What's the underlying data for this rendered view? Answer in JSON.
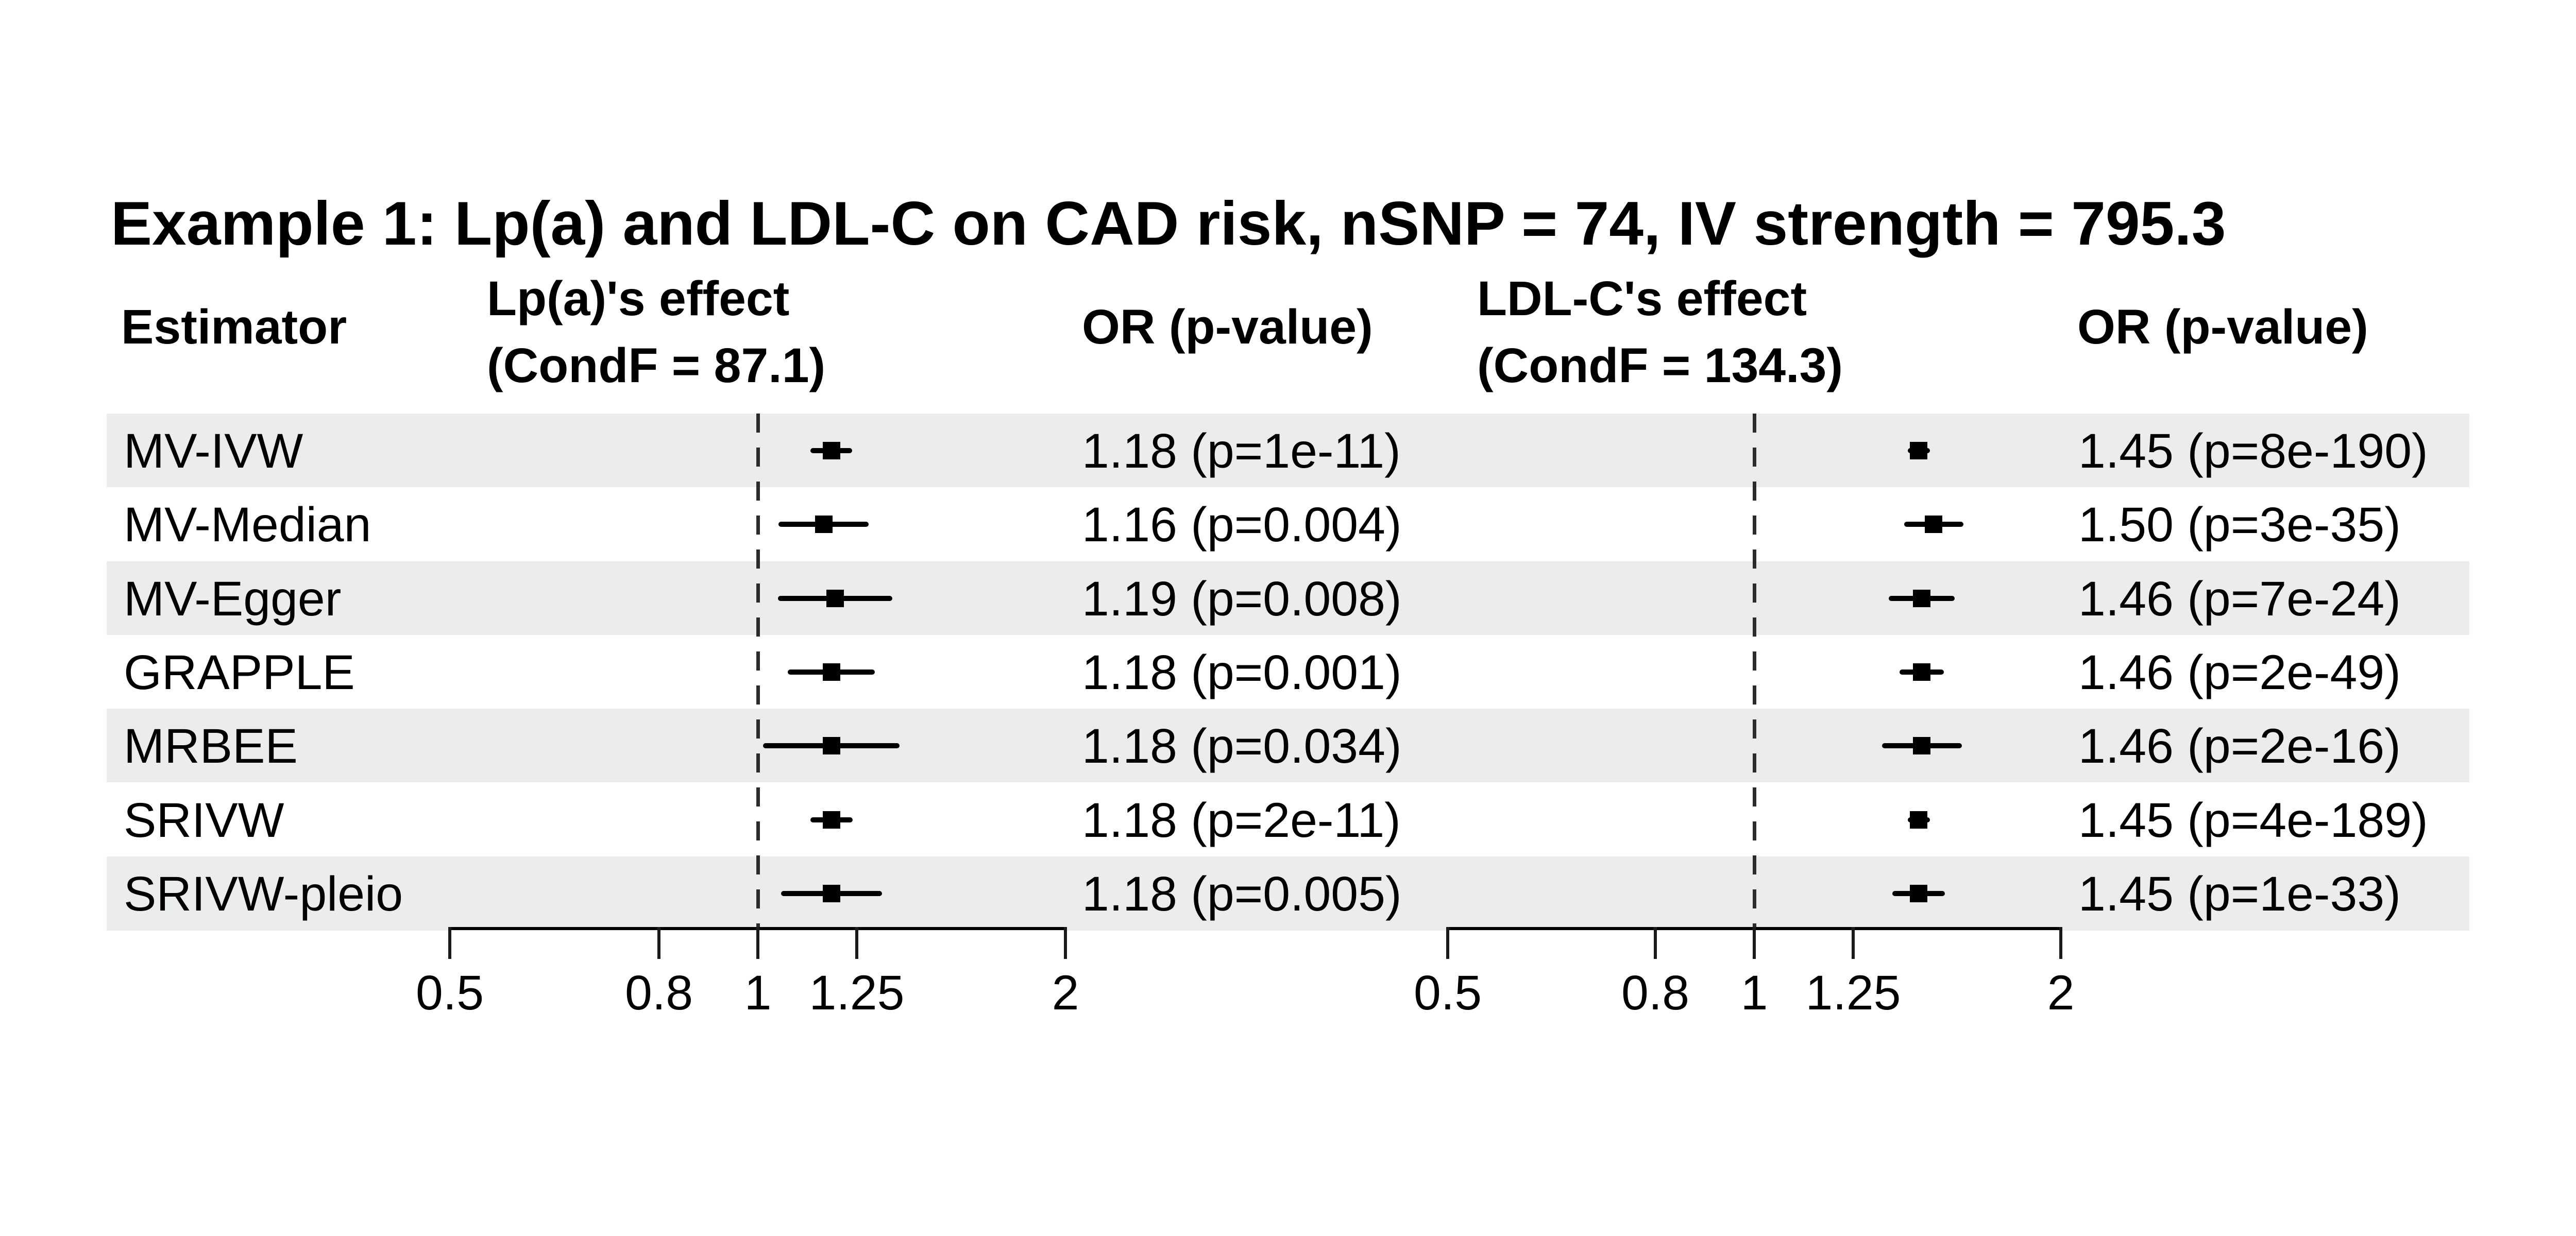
{
  "title": "Example 1: Lp(a) and LDL-C on CAD risk, nSNP = 74, IV strength = 795.3",
  "table_headers": {
    "estimator": "Estimator",
    "panel1_line1": "Lp(a)'s effect",
    "panel1_line2": "(CondF = 87.1)",
    "or_header_1": "OR (p-value)",
    "panel2_line1": "LDL-C's effect",
    "panel2_line2": "(CondF = 134.3)",
    "or_header_2": "OR (p-value)"
  },
  "axis": {
    "scale": "log",
    "tick_values": [
      0.5,
      0.8,
      1,
      1.25,
      2
    ],
    "tick_labels": [
      "0.5",
      "0.8",
      "1",
      "1.25",
      "2"
    ],
    "reference_line": 1
  },
  "chart_data": {
    "type": "forest",
    "title": "Example 1: Lp(a) and LDL-C on CAD risk, nSNP = 74, IV strength = 795.3",
    "x_scale": "log",
    "x_ticks": [
      0.5,
      0.8,
      1,
      1.25,
      2
    ],
    "reference_line": 1,
    "legend_position": "none",
    "grid": false,
    "row_shading_pattern": [
      "shaded",
      "white",
      "shaded",
      "white",
      "shaded",
      "white",
      "shaded"
    ],
    "categories": [
      "MV-IVW",
      "MV-Median",
      "MV-Egger",
      "GRAPPLE",
      "MRBEE",
      "SRIVW",
      "SRIVW-pleio"
    ],
    "panels": [
      {
        "name": "Lp(a)'s effect",
        "cond_f": 87.1,
        "or_column_header": "OR (p-value)",
        "series": [
          {
            "estimator": "MV-IVW",
            "or": 1.18,
            "ci_low": 1.125,
            "ci_high": 1.237,
            "p": "1e-11",
            "display": "1.18 (p=1e-11)"
          },
          {
            "estimator": "MV-Median",
            "or": 1.16,
            "ci_low": 1.048,
            "ci_high": 1.284,
            "p": "0.004",
            "display": "1.16 (p=0.004)"
          },
          {
            "estimator": "MV-Egger",
            "or": 1.19,
            "ci_low": 1.046,
            "ci_high": 1.354,
            "p": "0.008",
            "display": "1.19 (p=0.008)"
          },
          {
            "estimator": "GRAPPLE",
            "or": 1.18,
            "ci_low": 1.069,
            "ci_high": 1.302,
            "p": "0.001",
            "display": "1.18 (p=0.001)"
          },
          {
            "estimator": "MRBEE",
            "or": 1.18,
            "ci_low": 1.012,
            "ci_high": 1.376,
            "p": "0.034",
            "display": "1.18 (p=0.034)"
          },
          {
            "estimator": "SRIVW",
            "or": 1.18,
            "ci_low": 1.125,
            "ci_high": 1.238,
            "p": "2e-11",
            "display": "1.18 (p=2e-11)"
          },
          {
            "estimator": "SRIVW-pleio",
            "or": 1.18,
            "ci_low": 1.053,
            "ci_high": 1.323,
            "p": "0.005",
            "display": "1.18 (p=0.005)"
          }
        ]
      },
      {
        "name": "LDL-C's effect",
        "cond_f": 134.3,
        "or_column_header": "OR (p-value)",
        "series": [
          {
            "estimator": "MV-IVW",
            "or": 1.45,
            "ci_low": 1.415,
            "ci_high": 1.487,
            "p": "8e-190",
            "display": "1.45 (p=8e-190)"
          },
          {
            "estimator": "MV-Median",
            "or": 1.5,
            "ci_low": 1.403,
            "ci_high": 1.604,
            "p": "3e-35",
            "display": "1.50 (p=3e-35)"
          },
          {
            "estimator": "MV-Egger",
            "or": 1.46,
            "ci_low": 1.355,
            "ci_high": 1.573,
            "p": "7e-24",
            "display": "1.46 (p=7e-24)"
          },
          {
            "estimator": "GRAPPLE",
            "or": 1.46,
            "ci_low": 1.389,
            "ci_high": 1.534,
            "p": "2e-49",
            "display": "1.46 (p=2e-49)"
          },
          {
            "estimator": "MRBEE",
            "or": 1.46,
            "ci_low": 1.334,
            "ci_high": 1.598,
            "p": "2e-16",
            "display": "1.46 (p=2e-16)"
          },
          {
            "estimator": "SRIVW",
            "or": 1.45,
            "ci_low": 1.415,
            "ci_high": 1.487,
            "p": "4e-189",
            "display": "1.45 (p=4e-189)"
          },
          {
            "estimator": "SRIVW-pleio",
            "or": 1.45,
            "ci_low": 1.366,
            "ci_high": 1.539,
            "p": "1e-33",
            "display": "1.45 (p=1e-33)"
          }
        ]
      }
    ]
  },
  "colors": {
    "background": "#ffffff",
    "band_shaded": "#eaedeb",
    "marker": "#000000",
    "ci_line": "#000000",
    "axis": "#000000",
    "reference_dash": "#2b2b2b",
    "text": "#000000"
  }
}
